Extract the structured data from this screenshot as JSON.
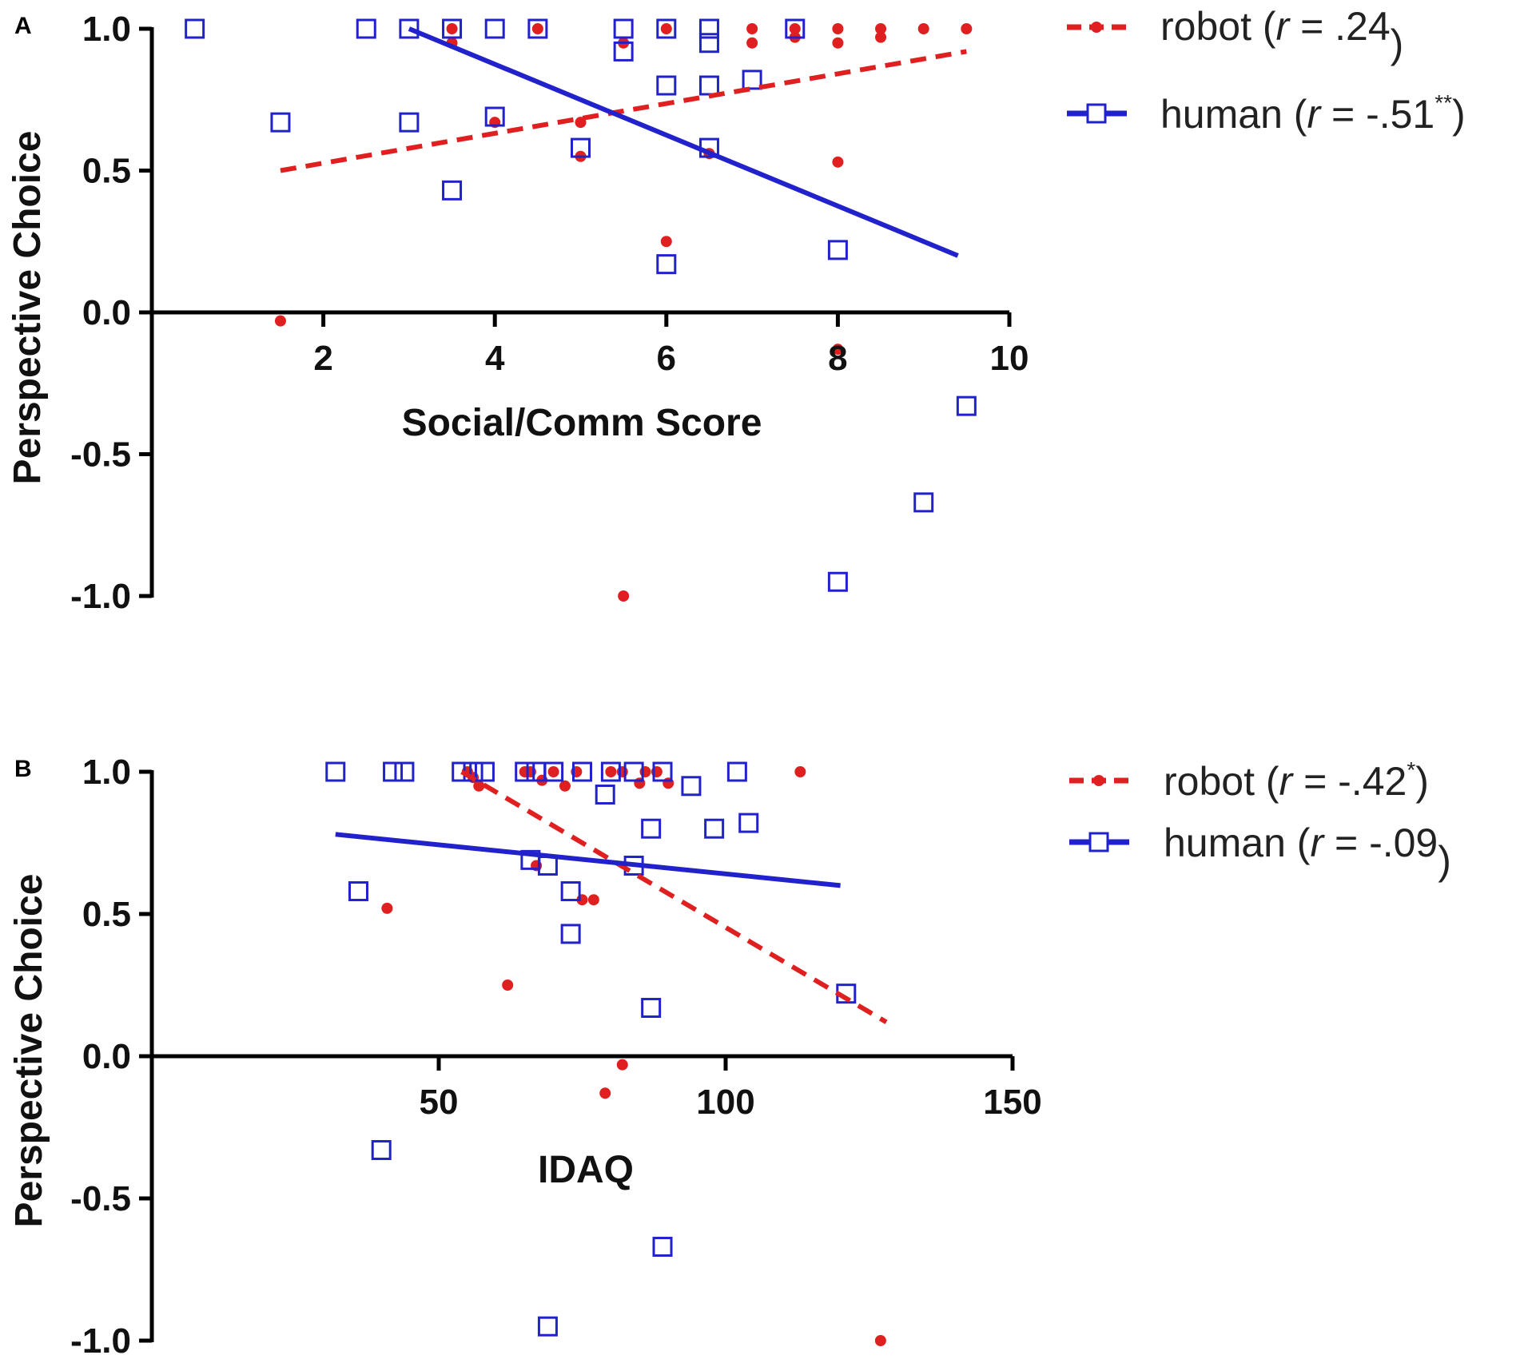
{
  "chart_data": [
    {
      "panel": "A",
      "type": "scatter",
      "xlabel": "Social/Comm Score",
      "ylabel": "Perspective Choice",
      "xlim": [
        0,
        10
      ],
      "ylim": [
        -1.0,
        1.0
      ],
      "x_ticks": [
        2,
        4,
        6,
        8,
        10
      ],
      "x_tick_labels": [
        "2",
        "4",
        "6",
        "8",
        "10"
      ],
      "y_ticks": [
        1.0,
        0.5,
        0.0,
        -0.5,
        -1.0
      ],
      "y_tick_labels": [
        "1.0",
        "0.5",
        "0.0",
        "-0.5",
        "-1.0"
      ],
      "grid": false,
      "legend_position": "right",
      "series": [
        {
          "name": "robot",
          "legend_prefix": "robot (",
          "legend_r_symbol": "r",
          "legend_r_value": " = .24",
          "legend_sup": "",
          "legend_suffix": ")",
          "color": "#e02020",
          "marker": "dot",
          "line_style": "dashed",
          "fit": {
            "x": [
              1.5,
              9.5
            ],
            "y": [
              0.5,
              0.92
            ]
          },
          "points": [
            [
              1.5,
              -0.03
            ],
            [
              3.5,
              0.95
            ],
            [
              3.5,
              1.0
            ],
            [
              4.0,
              0.67
            ],
            [
              4.5,
              1.0
            ],
            [
              5.0,
              0.67
            ],
            [
              5.0,
              0.55
            ],
            [
              5.5,
              0.95
            ],
            [
              5.5,
              -1.0
            ],
            [
              6.0,
              1.0
            ],
            [
              6.0,
              0.25
            ],
            [
              6.5,
              0.56
            ],
            [
              7.0,
              1.0
            ],
            [
              7.0,
              0.95
            ],
            [
              7.5,
              1.0
            ],
            [
              7.5,
              0.97
            ],
            [
              8.0,
              1.0
            ],
            [
              8.0,
              0.95
            ],
            [
              8.0,
              0.53
            ],
            [
              8.0,
              -0.13
            ],
            [
              8.5,
              1.0
            ],
            [
              8.5,
              0.97
            ],
            [
              9.0,
              1.0
            ],
            [
              9.5,
              1.0
            ]
          ]
        },
        {
          "name": "human",
          "legend_prefix": "human (",
          "legend_r_symbol": "r",
          "legend_r_value": " = -.51",
          "legend_sup": "**",
          "legend_suffix": ")",
          "color": "#2222cc",
          "marker": "open-square",
          "line_style": "solid",
          "fit": {
            "x": [
              3.0,
              9.4
            ],
            "y": [
              1.0,
              0.2
            ]
          },
          "points": [
            [
              0.5,
              1.0
            ],
            [
              1.5,
              0.67
            ],
            [
              2.5,
              1.0
            ],
            [
              3.0,
              1.0
            ],
            [
              3.0,
              0.67
            ],
            [
              3.5,
              1.0
            ],
            [
              3.5,
              0.43
            ],
            [
              4.0,
              1.0
            ],
            [
              4.0,
              0.69
            ],
            [
              4.5,
              1.0
            ],
            [
              5.0,
              0.58
            ],
            [
              5.5,
              1.0
            ],
            [
              5.5,
              0.92
            ],
            [
              6.0,
              1.0
            ],
            [
              6.0,
              0.8
            ],
            [
              6.0,
              0.17
            ],
            [
              6.5,
              1.0
            ],
            [
              6.5,
              0.95
            ],
            [
              6.5,
              0.8
            ],
            [
              6.5,
              0.58
            ],
            [
              7.0,
              0.82
            ],
            [
              7.5,
              1.0
            ],
            [
              8.0,
              0.22
            ],
            [
              8.0,
              -0.95
            ],
            [
              9.0,
              -0.67
            ],
            [
              9.5,
              -0.33
            ]
          ]
        }
      ]
    },
    {
      "panel": "B",
      "type": "scatter",
      "xlabel": "IDAQ",
      "ylabel": "Perspective Choice",
      "xlim": [
        0,
        150
      ],
      "ylim": [
        -1.0,
        1.0
      ],
      "x_ticks": [
        50,
        100,
        150
      ],
      "x_tick_labels": [
        "50",
        "100",
        "150"
      ],
      "y_ticks": [
        1.0,
        0.5,
        0.0,
        -0.5,
        -1.0
      ],
      "y_tick_labels": [
        "1.0",
        "0.5",
        "0.0",
        "-0.5",
        "-1.0"
      ],
      "grid": false,
      "legend_position": "right",
      "series": [
        {
          "name": "robot",
          "legend_prefix": "robot (",
          "legend_r_symbol": "r",
          "legend_r_value": " = -.42",
          "legend_sup": "*",
          "legend_suffix": ")",
          "color": "#e02020",
          "marker": "dot",
          "line_style": "dashed",
          "fit": {
            "x": [
              54,
              128
            ],
            "y": [
              1.0,
              0.12
            ]
          },
          "points": [
            [
              41,
              0.52
            ],
            [
              55,
              1.0
            ],
            [
              56,
              0.98
            ],
            [
              57,
              0.95
            ],
            [
              62,
              0.25
            ],
            [
              65,
              1.0
            ],
            [
              66,
              1.0
            ],
            [
              67,
              0.67
            ],
            [
              68,
              0.97
            ],
            [
              70,
              1.0
            ],
            [
              72,
              0.95
            ],
            [
              74,
              1.0
            ],
            [
              75,
              0.55
            ],
            [
              77,
              0.55
            ],
            [
              79,
              -0.13
            ],
            [
              80,
              1.0
            ],
            [
              82,
              1.0
            ],
            [
              82,
              -0.03
            ],
            [
              85,
              0.96
            ],
            [
              86,
              1.0
            ],
            [
              88,
              1.0
            ],
            [
              90,
              0.96
            ],
            [
              113,
              1.0
            ],
            [
              127,
              -1.0
            ]
          ]
        },
        {
          "name": "human",
          "legend_prefix": "human (",
          "legend_r_symbol": "r",
          "legend_r_value": " = -.09",
          "legend_sup": "",
          "legend_suffix": ")",
          "color": "#2222cc",
          "marker": "open-square",
          "line_style": "solid",
          "fit": {
            "x": [
              32,
              120
            ],
            "y": [
              0.78,
              0.6
            ]
          },
          "points": [
            [
              32,
              1.0
            ],
            [
              36,
              0.58
            ],
            [
              40,
              -0.33
            ],
            [
              42,
              1.0
            ],
            [
              44,
              1.0
            ],
            [
              54,
              1.0
            ],
            [
              56,
              1.0
            ],
            [
              58,
              1.0
            ],
            [
              65,
              1.0
            ],
            [
              66,
              0.69
            ],
            [
              67,
              1.0
            ],
            [
              69,
              0.67
            ],
            [
              70,
              1.0
            ],
            [
              73,
              0.58
            ],
            [
              73,
              0.43
            ],
            [
              75,
              1.0
            ],
            [
              69,
              -0.95
            ],
            [
              79,
              0.92
            ],
            [
              80,
              1.0
            ],
            [
              84,
              1.0
            ],
            [
              84,
              0.67
            ],
            [
              87,
              0.8
            ],
            [
              87,
              0.17
            ],
            [
              89,
              1.0
            ],
            [
              89,
              -0.67
            ],
            [
              94,
              0.95
            ],
            [
              98,
              0.8
            ],
            [
              102,
              1.0
            ],
            [
              104,
              0.82
            ],
            [
              121,
              0.22
            ]
          ]
        }
      ]
    }
  ]
}
